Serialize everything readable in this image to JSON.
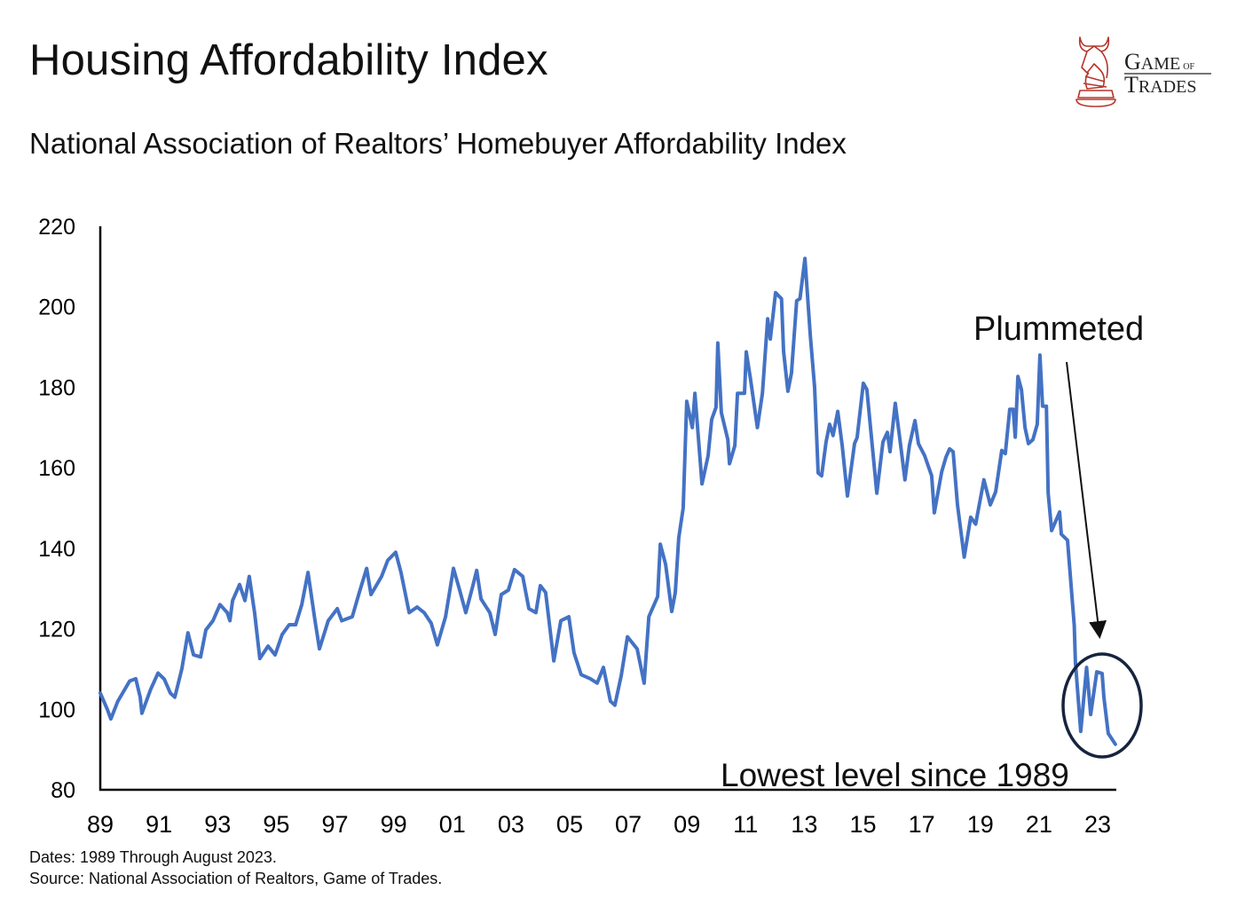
{
  "header": {
    "title": "Housing Affordability Index",
    "subtitle": "National Association of Realtors’ Homebuyer Affordability Index"
  },
  "logo": {
    "line1": "GAME",
    "of": "OF",
    "line2": "TRADES",
    "color": "#b5352a"
  },
  "footer": {
    "dates": "Dates: 1989 Through August 2023.",
    "source": "Source: National Association of Realtors, Game of Trades."
  },
  "chart_data": {
    "type": "line",
    "title": "",
    "xlabel": "",
    "ylabel": "",
    "xlim": [
      1989,
      2023.6
    ],
    "ylim": [
      80,
      220
    ],
    "yticks": [
      "80",
      "100",
      "120",
      "140",
      "160",
      "180",
      "200",
      "220"
    ],
    "ytick_values": [
      80,
      100,
      120,
      140,
      160,
      180,
      200,
      220
    ],
    "xticks": [
      "89",
      "91",
      "93",
      "95",
      "97",
      "99",
      "01",
      "03",
      "05",
      "07",
      "09",
      "11",
      "13",
      "15",
      "17",
      "19",
      "21",
      "23"
    ],
    "xtick_values": [
      1989,
      1991,
      1993,
      1995,
      1997,
      1999,
      2001,
      2003,
      2005,
      2007,
      2009,
      2011,
      2013,
      2015,
      2017,
      2019,
      2021,
      2023
    ],
    "grid": false,
    "line_color": "#4472c4",
    "annotations": {
      "plummeted": "Plummeted",
      "lowest": "Lowest level since 1989",
      "circle_color": "#16243d"
    },
    "points": [
      [
        1989.0,
        104
      ],
      [
        1989.24,
        100
      ],
      [
        1989.36,
        97.6
      ],
      [
        1989.6,
        102
      ],
      [
        1990.0,
        107
      ],
      [
        1990.21,
        107.6
      ],
      [
        1990.36,
        103
      ],
      [
        1990.42,
        99
      ],
      [
        1990.72,
        105
      ],
      [
        1990.97,
        109
      ],
      [
        1991.18,
        107.5
      ],
      [
        1991.39,
        104
      ],
      [
        1991.54,
        103
      ],
      [
        1991.78,
        110
      ],
      [
        1991.99,
        119
      ],
      [
        1992.18,
        113.5
      ],
      [
        1992.42,
        113
      ],
      [
        1992.6,
        119.7
      ],
      [
        1992.84,
        122
      ],
      [
        1993.08,
        126
      ],
      [
        1993.33,
        124
      ],
      [
        1993.42,
        122
      ],
      [
        1993.51,
        127
      ],
      [
        1993.75,
        131
      ],
      [
        1993.93,
        127
      ],
      [
        1994.08,
        133
      ],
      [
        1994.26,
        124
      ],
      [
        1994.44,
        112.6
      ],
      [
        1994.72,
        115.7
      ],
      [
        1994.96,
        113.5
      ],
      [
        1995.2,
        118.6
      ],
      [
        1995.44,
        121
      ],
      [
        1995.66,
        121
      ],
      [
        1995.87,
        126
      ],
      [
        1996.08,
        134
      ],
      [
        1996.32,
        122
      ],
      [
        1996.47,
        115
      ],
      [
        1996.77,
        122
      ],
      [
        1997.08,
        125
      ],
      [
        1997.23,
        122
      ],
      [
        1997.59,
        123
      ],
      [
        1997.83,
        129
      ],
      [
        1998.08,
        135
      ],
      [
        1998.23,
        128.5
      ],
      [
        1998.59,
        133
      ],
      [
        1998.8,
        137
      ],
      [
        1999.07,
        139
      ],
      [
        1999.25,
        134
      ],
      [
        1999.53,
        124
      ],
      [
        1999.8,
        125.4
      ],
      [
        2000.04,
        124
      ],
      [
        2000.28,
        121.4
      ],
      [
        2000.49,
        116
      ],
      [
        2000.77,
        123
      ],
      [
        2001.04,
        135
      ],
      [
        2001.25,
        129.6
      ],
      [
        2001.46,
        124
      ],
      [
        2001.7,
        130.7
      ],
      [
        2001.83,
        134.5
      ],
      [
        2001.98,
        127.4
      ],
      [
        2002.28,
        124
      ],
      [
        2002.46,
        118.6
      ],
      [
        2002.67,
        128.5
      ],
      [
        2002.91,
        129.6
      ],
      [
        2003.12,
        134.7
      ],
      [
        2003.4,
        133
      ],
      [
        2003.61,
        125
      ],
      [
        2003.85,
        124
      ],
      [
        2004.0,
        130.7
      ],
      [
        2004.18,
        129
      ],
      [
        2004.46,
        112
      ],
      [
        2004.7,
        122
      ],
      [
        2004.97,
        123
      ],
      [
        2005.15,
        114
      ],
      [
        2005.39,
        108.6
      ],
      [
        2005.7,
        107.6
      ],
      [
        2005.94,
        106.5
      ],
      [
        2006.15,
        110.4
      ],
      [
        2006.39,
        102
      ],
      [
        2006.54,
        101
      ],
      [
        2006.76,
        108.4
      ],
      [
        2006.97,
        118
      ],
      [
        2007.3,
        115
      ],
      [
        2007.54,
        106.5
      ],
      [
        2007.7,
        123
      ],
      [
        2008.0,
        128
      ],
      [
        2008.09,
        141
      ],
      [
        2008.27,
        136
      ],
      [
        2008.48,
        124.3
      ],
      [
        2008.6,
        129
      ],
      [
        2008.72,
        142.6
      ],
      [
        2008.87,
        150
      ],
      [
        2008.99,
        176.5
      ],
      [
        2009.18,
        170
      ],
      [
        2009.27,
        178.5
      ],
      [
        2009.51,
        156
      ],
      [
        2009.72,
        163
      ],
      [
        2009.84,
        172
      ],
      [
        2009.99,
        175
      ],
      [
        2010.05,
        191
      ],
      [
        2010.17,
        173.7
      ],
      [
        2010.39,
        167
      ],
      [
        2010.45,
        161
      ],
      [
        2010.63,
        165.5
      ],
      [
        2010.72,
        178.5
      ],
      [
        2010.96,
        178.5
      ],
      [
        2011.02,
        188.8
      ],
      [
        2011.17,
        181.8
      ],
      [
        2011.4,
        170
      ],
      [
        2011.57,
        178.5
      ],
      [
        2011.75,
        197
      ],
      [
        2011.84,
        192
      ],
      [
        2012.02,
        203.5
      ],
      [
        2012.22,
        202
      ],
      [
        2012.29,
        189
      ],
      [
        2012.44,
        179
      ],
      [
        2012.56,
        183.5
      ],
      [
        2012.74,
        201.5
      ],
      [
        2012.85,
        202
      ],
      [
        2013.02,
        212
      ],
      [
        2013.2,
        193
      ],
      [
        2013.35,
        180
      ],
      [
        2013.47,
        158.7
      ],
      [
        2013.59,
        158
      ],
      [
        2013.74,
        166.4
      ],
      [
        2013.86,
        170.8
      ],
      [
        2013.98,
        168
      ],
      [
        2014.14,
        174
      ],
      [
        2014.29,
        165.5
      ],
      [
        2014.47,
        153
      ],
      [
        2014.71,
        166
      ],
      [
        2014.8,
        167.5
      ],
      [
        2015.01,
        181
      ],
      [
        2015.13,
        179.4
      ],
      [
        2015.47,
        153.7
      ],
      [
        2015.68,
        166.4
      ],
      [
        2015.83,
        168.8
      ],
      [
        2015.92,
        164
      ],
      [
        2016.1,
        176
      ],
      [
        2016.27,
        166.4
      ],
      [
        2016.43,
        157
      ],
      [
        2016.58,
        165.5
      ],
      [
        2016.77,
        171.7
      ],
      [
        2016.89,
        166
      ],
      [
        2017.1,
        163
      ],
      [
        2017.34,
        158
      ],
      [
        2017.43,
        148.8
      ],
      [
        2017.68,
        159
      ],
      [
        2017.83,
        162.7
      ],
      [
        2017.95,
        164.7
      ],
      [
        2018.07,
        164
      ],
      [
        2018.22,
        150.8
      ],
      [
        2018.45,
        137.8
      ],
      [
        2018.67,
        147.7
      ],
      [
        2018.84,
        146
      ],
      [
        2019.12,
        157
      ],
      [
        2019.34,
        150.8
      ],
      [
        2019.52,
        154
      ],
      [
        2019.73,
        164.3
      ],
      [
        2019.85,
        163.5
      ],
      [
        2020.0,
        174.5
      ],
      [
        2020.12,
        174.5
      ],
      [
        2020.19,
        167.6
      ],
      [
        2020.28,
        182.7
      ],
      [
        2020.4,
        179.4
      ],
      [
        2020.52,
        170
      ],
      [
        2020.64,
        166
      ],
      [
        2020.79,
        167
      ],
      [
        2020.94,
        170.8
      ],
      [
        2021.03,
        188
      ],
      [
        2021.12,
        175.3
      ],
      [
        2021.25,
        175.3
      ],
      [
        2021.31,
        153.7
      ],
      [
        2021.43,
        144.4
      ],
      [
        2021.7,
        149
      ],
      [
        2021.76,
        143.5
      ],
      [
        2021.97,
        142
      ],
      [
        2022.2,
        120.8
      ],
      [
        2022.24,
        111.7
      ],
      [
        2022.42,
        94.5
      ],
      [
        2022.62,
        110.4
      ],
      [
        2022.76,
        98.7
      ],
      [
        2022.97,
        109.3
      ],
      [
        2023.15,
        108.9
      ],
      [
        2023.21,
        103
      ],
      [
        2023.36,
        94
      ],
      [
        2023.6,
        91.3
      ]
    ]
  }
}
